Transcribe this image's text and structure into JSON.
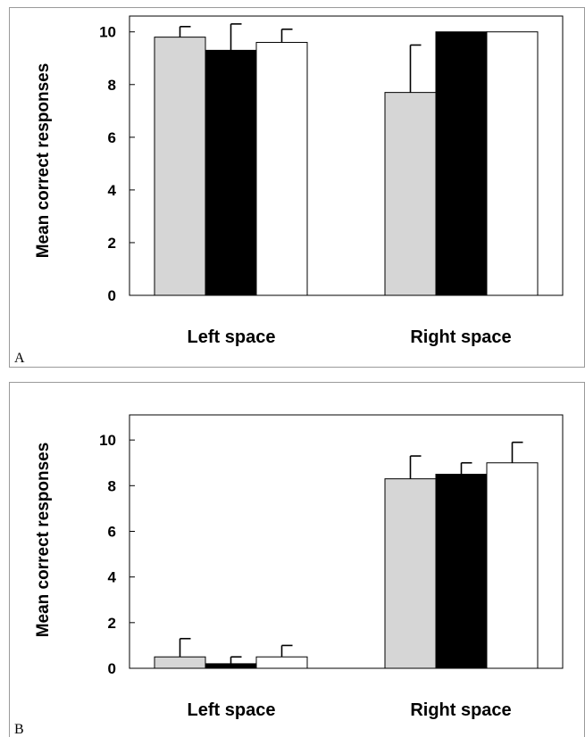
{
  "chart_data": [
    {
      "panel": "A",
      "type": "bar",
      "ylabel": "Mean correct responses",
      "ylim": [
        0,
        10.6
      ],
      "yticks": [
        "0",
        "2",
        "4",
        "6",
        "8",
        "10"
      ],
      "categories": [
        "Left space",
        "Right space"
      ],
      "series": [
        {
          "color": "#d6d6d6",
          "values": [
            9.8,
            7.7
          ],
          "errors": [
            0.4,
            1.8
          ]
        },
        {
          "color": "#000000",
          "values": [
            9.3,
            10.0
          ],
          "errors": [
            1.0,
            0.0
          ]
        },
        {
          "color": "#ffffff",
          "values": [
            9.6,
            10.0
          ],
          "errors": [
            0.5,
            0.0
          ]
        }
      ],
      "grid": false
    },
    {
      "panel": "B",
      "type": "bar",
      "ylabel": "Mean correct responses",
      "ylim": [
        0,
        11.1
      ],
      "yticks": [
        "0",
        "2",
        "4",
        "6",
        "8",
        "10"
      ],
      "categories": [
        "Left space",
        "Right space"
      ],
      "series": [
        {
          "color": "#d6d6d6",
          "values": [
            0.5,
            8.3
          ],
          "errors": [
            0.8,
            1.0
          ]
        },
        {
          "color": "#000000",
          "values": [
            0.2,
            8.5
          ],
          "errors": [
            0.3,
            0.5
          ]
        },
        {
          "color": "#ffffff",
          "values": [
            0.5,
            9.0
          ],
          "errors": [
            0.5,
            0.9
          ]
        }
      ],
      "grid": false
    }
  ]
}
